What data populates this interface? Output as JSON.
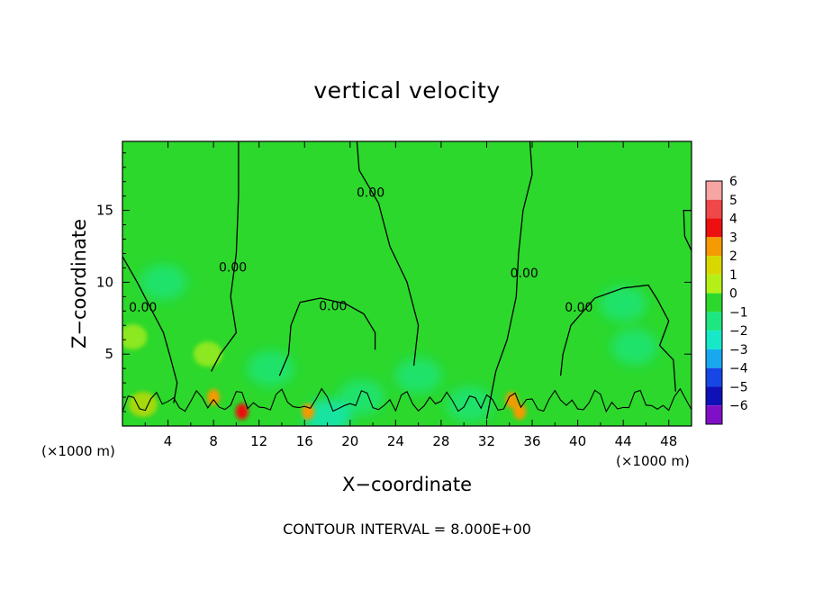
{
  "chart_data": {
    "type": "heatmap",
    "title": "vertical velocity",
    "xlabel": "X−coordinate",
    "ylabel": "Z−coordinate",
    "x_unit": "(×1000 m)",
    "xlim": [
      0,
      50
    ],
    "ylim": [
      0,
      19.8
    ],
    "x_ticks": [
      4,
      8,
      12,
      16,
      20,
      24,
      28,
      32,
      36,
      40,
      44,
      48
    ],
    "y_ticks": [
      5,
      10,
      15
    ],
    "colorbar": {
      "levels": [
        6,
        5,
        4,
        3,
        2,
        1,
        0,
        -1,
        -2,
        -3,
        -4,
        -5,
        -6
      ],
      "colors": [
        "#f6a4a4",
        "#f04848",
        "#ee1010",
        "#f59a00",
        "#d8d800",
        "#b5ef18",
        "#2cd82c",
        "#1ee680",
        "#16e8c8",
        "#18a8f0",
        "#1646e6",
        "#1010b8",
        "#8010c8"
      ]
    },
    "contour_label": "0.00",
    "contour_interval_text": "CONTOUR INTERVAL =  8.000E+00",
    "annotations": [
      {
        "text": "0.00",
        "x": 1.8,
        "y": 8.2
      },
      {
        "text": "0.00",
        "x": 9.7,
        "y": 11.0
      },
      {
        "text": "0.00",
        "x": 21.8,
        "y": 16.2
      },
      {
        "text": "0.00",
        "x": 18.5,
        "y": 8.3
      },
      {
        "text": "0.00",
        "x": 35.3,
        "y": 10.6
      },
      {
        "text": "0.00",
        "x": 40.1,
        "y": 8.2
      }
    ],
    "hotspots": [
      {
        "x": 8.0,
        "y": 2.0,
        "value": 2.5
      },
      {
        "x": 10.5,
        "y": 1.0,
        "value": 3.5
      },
      {
        "x": 16.3,
        "y": 1.0,
        "value": 3.0
      },
      {
        "x": 34.2,
        "y": 1.8,
        "value": 2.5
      },
      {
        "x": 34.9,
        "y": 1.0,
        "value": 3.0
      },
      {
        "x": 0.9,
        "y": 6.2,
        "value": 1.3
      },
      {
        "x": 1.8,
        "y": 1.5,
        "value": 1.5
      },
      {
        "x": 7.5,
        "y": 5.0,
        "value": 1.2
      }
    ],
    "coldspots": [
      {
        "x": 3.6,
        "y": 10.0,
        "value": -0.6
      },
      {
        "x": 45.0,
        "y": 5.5,
        "value": -1.0
      },
      {
        "x": 44.0,
        "y": 8.5,
        "value": -0.6
      },
      {
        "x": 21.0,
        "y": 2.0,
        "value": -1.5
      },
      {
        "x": 26.0,
        "y": 3.5,
        "value": -1.2
      },
      {
        "x": 30.5,
        "y": 1.5,
        "value": -1.0
      },
      {
        "x": 18.0,
        "y": 0.6,
        "value": -2.0
      },
      {
        "x": 13.0,
        "y": 4.0,
        "value": -0.8
      }
    ],
    "contour_lines": [
      [
        [
          10.2,
          19.8
        ],
        [
          10.2,
          16.0
        ],
        [
          10.0,
          12.0
        ],
        [
          9.5,
          9.0
        ],
        [
          10.0,
          6.5
        ],
        [
          8.6,
          5.0
        ],
        [
          7.8,
          3.8
        ]
      ],
      [
        [
          20.6,
          19.8
        ],
        [
          20.8,
          17.8
        ],
        [
          22.5,
          15.5
        ],
        [
          23.5,
          12.5
        ],
        [
          25.0,
          10.0
        ],
        [
          26.0,
          7.0
        ],
        [
          25.6,
          4.2
        ]
      ],
      [
        [
          35.8,
          19.8
        ],
        [
          36.0,
          17.5
        ],
        [
          35.2,
          15.0
        ],
        [
          34.8,
          12.0
        ],
        [
          34.6,
          9.0
        ],
        [
          33.8,
          6.0
        ],
        [
          32.8,
          3.8
        ],
        [
          32.0,
          0.5
        ]
      ],
      [
        [
          0.0,
          11.8
        ],
        [
          1.3,
          10.0
        ],
        [
          2.6,
          8.0
        ],
        [
          3.6,
          6.5
        ],
        [
          4.2,
          4.8
        ],
        [
          4.8,
          3.0
        ],
        [
          4.5,
          1.6
        ]
      ],
      [
        [
          13.8,
          3.5
        ],
        [
          14.6,
          5.0
        ],
        [
          14.8,
          7.0
        ],
        [
          15.6,
          8.6
        ],
        [
          17.4,
          8.9
        ],
        [
          19.6,
          8.5
        ],
        [
          21.2,
          7.8
        ],
        [
          22.2,
          6.5
        ],
        [
          22.2,
          5.3
        ]
      ],
      [
        [
          38.5,
          3.5
        ],
        [
          38.7,
          5.0
        ],
        [
          39.4,
          7.0
        ],
        [
          41.5,
          8.9
        ],
        [
          44.0,
          9.6
        ],
        [
          46.2,
          9.8
        ],
        [
          47.0,
          8.8
        ],
        [
          48.0,
          7.3
        ],
        [
          47.2,
          5.6
        ],
        [
          48.4,
          4.6
        ],
        [
          48.6,
          2.4
        ]
      ],
      [
        [
          50.0,
          12.2
        ],
        [
          49.4,
          13.2
        ],
        [
          49.3,
          15.0
        ],
        [
          50.0,
          15.0
        ]
      ]
    ]
  },
  "footer": {
    "contour_interval": "CONTOUR INTERVAL =  8.000E+00"
  }
}
